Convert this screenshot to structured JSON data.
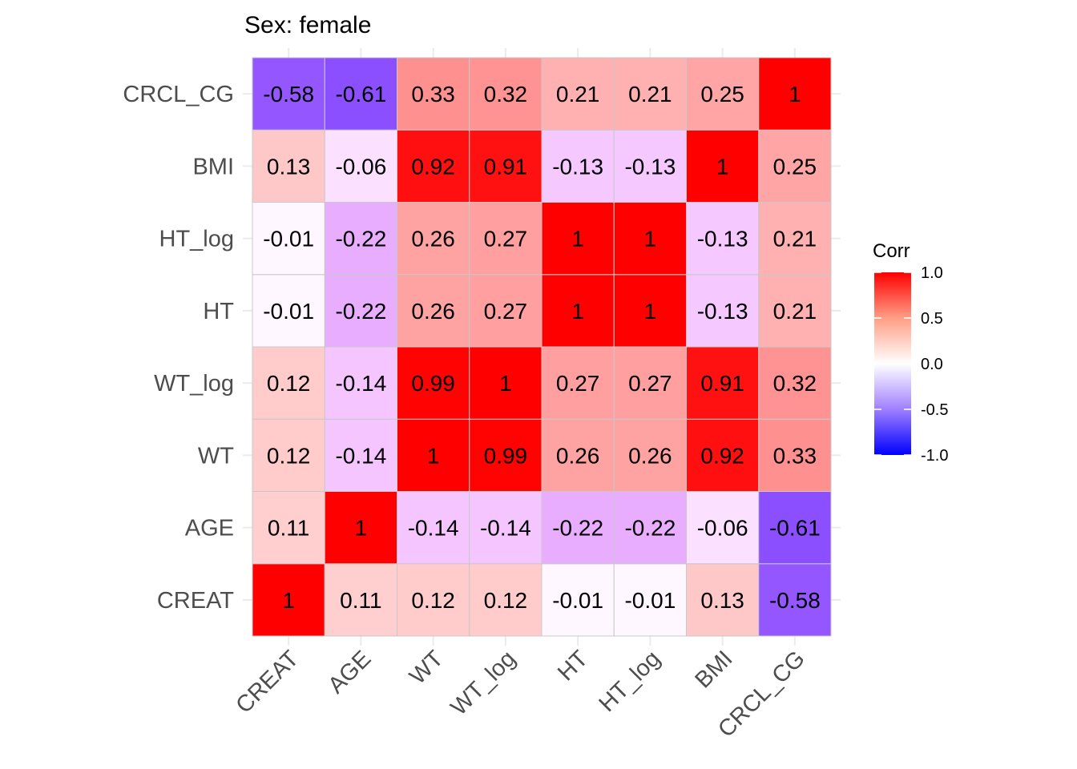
{
  "chart_data": {
    "type": "heatmap",
    "title": "Sex: female",
    "xlabel": "",
    "ylabel": "",
    "variables": [
      "CREAT",
      "AGE",
      "WT",
      "WT_log",
      "HT",
      "HT_log",
      "BMI",
      "CRCL_CG"
    ],
    "matrix": [
      [
        1,
        0.11,
        0.12,
        0.12,
        -0.01,
        -0.01,
        0.13,
        -0.58
      ],
      [
        0.11,
        1,
        -0.14,
        -0.14,
        -0.22,
        -0.22,
        -0.06,
        -0.61
      ],
      [
        0.12,
        -0.14,
        1,
        0.99,
        0.26,
        0.26,
        0.92,
        0.33
      ],
      [
        0.12,
        -0.14,
        0.99,
        1,
        0.27,
        0.27,
        0.91,
        0.32
      ],
      [
        -0.01,
        -0.22,
        0.26,
        0.27,
        1,
        1,
        -0.13,
        0.21
      ],
      [
        -0.01,
        -0.22,
        0.26,
        0.27,
        1,
        1,
        -0.13,
        0.21
      ],
      [
        0.13,
        -0.06,
        0.92,
        0.91,
        -0.13,
        -0.13,
        1,
        0.25
      ],
      [
        -0.58,
        -0.61,
        0.33,
        0.32,
        0.21,
        0.21,
        0.25,
        1
      ]
    ],
    "cell_labels": [
      [
        "1",
        "0.11",
        "0.12",
        "0.12",
        "-0.01",
        "-0.01",
        "0.13",
        "-0.58"
      ],
      [
        "0.11",
        "1",
        "-0.14",
        "-0.14",
        "-0.22",
        "-0.22",
        "-0.06",
        "-0.61"
      ],
      [
        "0.12",
        "-0.14",
        "1",
        "0.99",
        "0.26",
        "0.26",
        "0.92",
        "0.33"
      ],
      [
        "0.12",
        "-0.14",
        "0.99",
        "1",
        "0.27",
        "0.27",
        "0.91",
        "0.32"
      ],
      [
        "-0.01",
        "-0.22",
        "0.26",
        "0.27",
        "1",
        "1",
        "-0.13",
        "0.21"
      ],
      [
        "-0.01",
        "-0.22",
        "0.26",
        "0.27",
        "1",
        "1",
        "-0.13",
        "0.21"
      ],
      [
        "0.13",
        "-0.06",
        "0.92",
        "0.91",
        "-0.13",
        "-0.13",
        "1",
        "0.25"
      ],
      [
        "-0.58",
        "-0.61",
        "0.33",
        "0.32",
        "0.21",
        "0.21",
        "0.25",
        "1"
      ]
    ],
    "x_order": "left-to-right",
    "y_order": "bottom-to-top",
    "color_scale": {
      "low": "#0000FF",
      "mid": "#FFFFFF",
      "high": "#FF0000",
      "limits": [
        -1,
        1
      ]
    },
    "legend": {
      "title": "Corr",
      "position": "right",
      "ticks": [
        1.0,
        0.5,
        0.0,
        -0.5,
        -1.0
      ],
      "tick_labels": [
        "1.0",
        "0.5",
        "0.0",
        "-0.5",
        "-1.0"
      ]
    },
    "grid": true,
    "x_tick_rotation_deg": 45
  }
}
